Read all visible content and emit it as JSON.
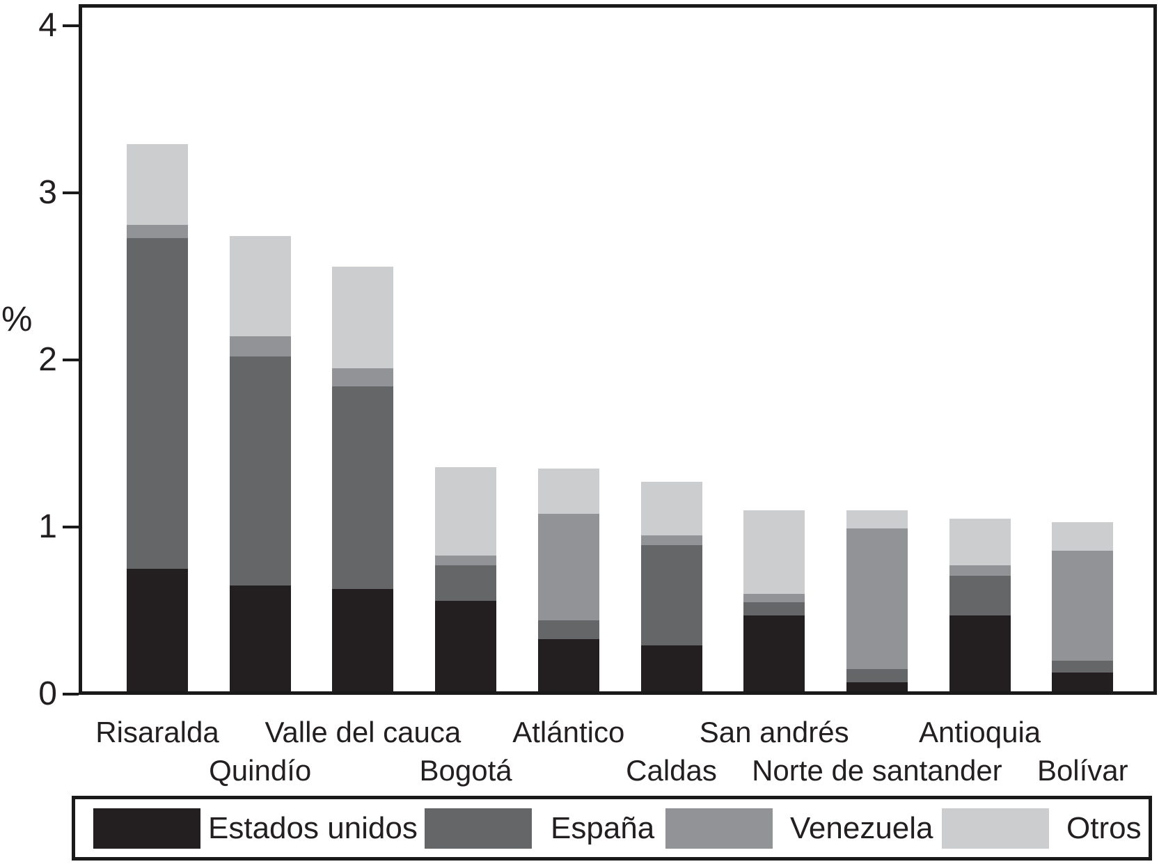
{
  "chart_data": {
    "type": "bar",
    "stacked": true,
    "title": "",
    "xlabel": "",
    "ylabel": "%",
    "ylim": [
      0,
      4
    ],
    "yticks": [
      0,
      1,
      2,
      3,
      4
    ],
    "grid": false,
    "legend_position": "bottom",
    "categories": [
      "Risaralda",
      "Quindío",
      "Valle del cauca",
      "Bogotá",
      "Atlántico",
      "Caldas",
      "San andrés",
      "Norte de santander",
      "Antioquia",
      "Bolívar"
    ],
    "series": [
      {
        "name": "Estados unidos",
        "color": "#231f20",
        "values": [
          0.75,
          0.65,
          0.63,
          0.56,
          0.33,
          0.29,
          0.47,
          0.07,
          0.47,
          0.13
        ]
      },
      {
        "name": "España",
        "color": "#656668",
        "values": [
          1.98,
          1.37,
          1.21,
          0.21,
          0.11,
          0.6,
          0.08,
          0.08,
          0.24,
          0.07
        ]
      },
      {
        "name": "Venezuela",
        "color": "#919396",
        "values": [
          0.08,
          0.12,
          0.11,
          0.06,
          0.64,
          0.06,
          0.05,
          0.84,
          0.06,
          0.66
        ]
      },
      {
        "name": "Otros",
        "color": "#cccdcf",
        "values": [
          0.48,
          0.6,
          0.61,
          0.53,
          0.27,
          0.32,
          0.5,
          0.11,
          0.28,
          0.17
        ]
      }
    ],
    "bar_totals": [
      3.29,
      2.74,
      2.56,
      1.36,
      1.35,
      1.27,
      1.1,
      1.1,
      1.05,
      1.03
    ],
    "ytick_labels": [
      "0",
      "1",
      "2",
      "3",
      "4"
    ]
  }
}
